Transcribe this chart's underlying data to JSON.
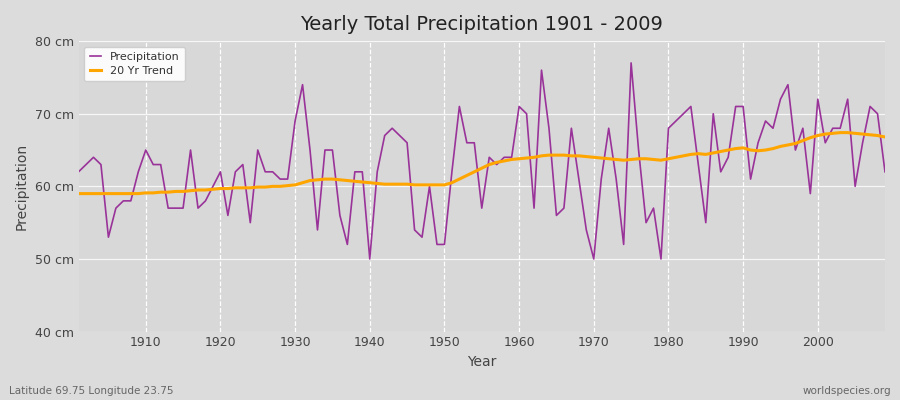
{
  "title": "Yearly Total Precipitation 1901 - 2009",
  "xlabel": "Year",
  "ylabel": "Precipitation",
  "subtitle_left": "Latitude 69.75 Longitude 23.75",
  "subtitle_right": "worldspecies.org",
  "years": [
    1901,
    1902,
    1903,
    1904,
    1905,
    1906,
    1907,
    1908,
    1909,
    1910,
    1911,
    1912,
    1913,
    1914,
    1915,
    1916,
    1917,
    1918,
    1919,
    1920,
    1921,
    1922,
    1923,
    1924,
    1925,
    1926,
    1927,
    1928,
    1929,
    1930,
    1931,
    1932,
    1933,
    1934,
    1935,
    1936,
    1937,
    1938,
    1939,
    1940,
    1941,
    1942,
    1943,
    1944,
    1945,
    1946,
    1947,
    1948,
    1949,
    1950,
    1951,
    1952,
    1953,
    1954,
    1955,
    1956,
    1957,
    1958,
    1959,
    1960,
    1961,
    1962,
    1963,
    1964,
    1965,
    1966,
    1967,
    1968,
    1969,
    1970,
    1971,
    1972,
    1973,
    1974,
    1975,
    1976,
    1977,
    1978,
    1979,
    1980,
    1981,
    1982,
    1983,
    1984,
    1985,
    1986,
    1987,
    1988,
    1989,
    1990,
    1991,
    1992,
    1993,
    1994,
    1995,
    1996,
    1997,
    1998,
    1999,
    2000,
    2001,
    2002,
    2003,
    2004,
    2005,
    2006,
    2007,
    2008,
    2009
  ],
  "precip": [
    62,
    63,
    64,
    63,
    53,
    57,
    58,
    58,
    62,
    65,
    63,
    63,
    57,
    57,
    57,
    65,
    57,
    58,
    60,
    62,
    56,
    62,
    63,
    55,
    65,
    62,
    62,
    61,
    61,
    69,
    74,
    65,
    54,
    65,
    65,
    56,
    52,
    62,
    62,
    50,
    62,
    67,
    68,
    67,
    66,
    54,
    53,
    60,
    52,
    52,
    62,
    71,
    66,
    66,
    57,
    64,
    63,
    64,
    64,
    71,
    70,
    57,
    76,
    68,
    56,
    57,
    68,
    61,
    54,
    50,
    61,
    68,
    61,
    52,
    77,
    65,
    55,
    57,
    50,
    68,
    69,
    70,
    71,
    63,
    55,
    70,
    62,
    64,
    71,
    71,
    61,
    66,
    69,
    68,
    72,
    74,
    65,
    68,
    59,
    72,
    66,
    68,
    68,
    72,
    60,
    66,
    71,
    70,
    62
  ],
  "trend": [
    59.0,
    59.0,
    59.0,
    59.0,
    59.0,
    59.0,
    59.0,
    59.0,
    59.0,
    59.1,
    59.1,
    59.2,
    59.2,
    59.3,
    59.3,
    59.4,
    59.5,
    59.5,
    59.6,
    59.7,
    59.7,
    59.8,
    59.8,
    59.8,
    59.9,
    59.9,
    60.0,
    60.0,
    60.1,
    60.2,
    60.5,
    60.8,
    60.9,
    61.0,
    61.0,
    60.9,
    60.8,
    60.7,
    60.6,
    60.5,
    60.4,
    60.3,
    60.3,
    60.3,
    60.3,
    60.2,
    60.2,
    60.2,
    60.2,
    60.2,
    60.5,
    61.0,
    61.5,
    62.0,
    62.5,
    63.0,
    63.3,
    63.5,
    63.7,
    63.8,
    63.9,
    64.0,
    64.2,
    64.3,
    64.3,
    64.3,
    64.2,
    64.2,
    64.1,
    64.0,
    63.9,
    63.8,
    63.7,
    63.6,
    63.7,
    63.8,
    63.8,
    63.7,
    63.6,
    63.8,
    64.0,
    64.2,
    64.4,
    64.5,
    64.4,
    64.6,
    64.8,
    65.0,
    65.2,
    65.3,
    65.0,
    64.9,
    65.0,
    65.2,
    65.5,
    65.7,
    65.9,
    66.3,
    66.7,
    67.0,
    67.2,
    67.3,
    67.4,
    67.4,
    67.3,
    67.2,
    67.1,
    67.0,
    66.8
  ],
  "precip_color": "#993399",
  "trend_color": "#FFA500",
  "bg_color": "#DCDCDC",
  "plot_bg_color": "#D8D8D8",
  "ylim": [
    40,
    80
  ],
  "yticks": [
    40,
    50,
    60,
    70,
    80
  ],
  "ytick_labels": [
    "40 cm",
    "50 cm",
    "60 cm",
    "70 cm",
    "80 cm"
  ],
  "xlim": [
    1901,
    2009
  ],
  "xticks": [
    1910,
    1920,
    1930,
    1940,
    1950,
    1960,
    1970,
    1980,
    1990,
    2000
  ],
  "title_fontsize": 14,
  "label_fontsize": 9,
  "axis_label_fontsize": 10
}
